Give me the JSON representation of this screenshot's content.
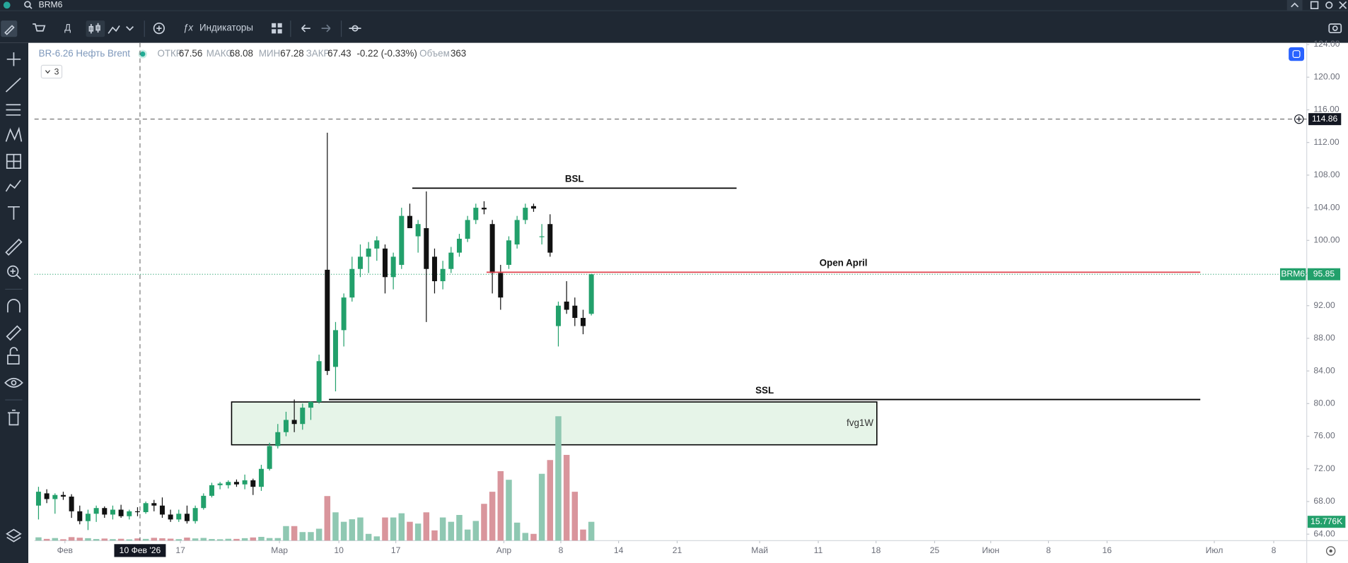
{
  "top_bar": {
    "symbol": "BRM6"
  },
  "toolbar": {
    "interval": "Д",
    "indicators": "Индикаторы"
  },
  "legend": {
    "name": "BR-6.26 Нефть Brent",
    "items": [
      {
        "label": "ОТКР",
        "value": 67.56
      },
      {
        "label": "МАКС",
        "value": 68.08
      },
      {
        "label": "МИН",
        "value": 67.28
      },
      {
        "label": "ЗАКР",
        "value": 67.43
      }
    ],
    "change": "-0.22 (-0.33%)",
    "volume_label": "Объем",
    "volume": 363,
    "collapsed_count": "3"
  },
  "chart_data": {
    "type": "candlestick",
    "open": [
      67.5,
      69.0,
      68.3,
      68.8,
      68.6,
      66.8,
      65.6,
      66.5,
      67.2,
      66.4,
      67.0,
      66.2,
      66.8,
      66.7,
      67.8,
      67.5,
      66.4,
      65.8,
      66.5,
      65.6,
      67.2,
      68.7,
      70.0,
      70.0,
      70.4,
      70.1,
      70.6,
      69.8,
      72.0,
      74.8,
      76.5,
      78.0,
      77.5,
      79.5,
      80.2,
      96.4,
      84.5,
      89.0,
      93.0,
      96.5,
      98.0,
      99.0,
      99.0,
      95.5,
      97.0,
      103.0,
      100.5,
      101.5,
      98.0,
      95.0,
      96.5,
      98.5,
      100.2,
      102.5,
      104.0,
      102.0,
      96.0,
      97.0,
      99.5,
      102.5,
      104.2,
      100.5,
      102.0,
      89.5,
      92.5,
      92.0,
      90.5,
      91.0
    ],
    "high": [
      69.8,
      69.5,
      69.0,
      69.2,
      68.9,
      67.5,
      67.0,
      67.5,
      67.4,
      67.5,
      67.6,
      67.0,
      67.3,
      68.0,
      68.2,
      68.5,
      67.0,
      67.0,
      67.5,
      67.5,
      69.0,
      70.3,
      70.4,
      70.6,
      70.7,
      71.3,
      70.8,
      72.5,
      75.2,
      77.5,
      79.0,
      80.5,
      80.0,
      80.3,
      86.0,
      113.2,
      90.0,
      93.5,
      98.0,
      99.5,
      99.8,
      100.5,
      99.5,
      98.5,
      104.0,
      104.5,
      102.5,
      106.0,
      99.0,
      97.5,
      99.2,
      100.8,
      103.0,
      104.5,
      104.8,
      102.5,
      97.0,
      100.5,
      103.0,
      104.5,
      104.5,
      102.0,
      103.2,
      92.5,
      95.0,
      93.0,
      91.5,
      95.9
    ],
    "low": [
      65.8,
      67.8,
      66.5,
      68.2,
      66.0,
      65.2,
      64.5,
      65.5,
      66.0,
      65.8,
      66.0,
      65.8,
      66.2,
      66.5,
      66.8,
      66.0,
      65.5,
      65.5,
      65.3,
      65.3,
      67.0,
      68.5,
      69.5,
      69.6,
      69.8,
      69.5,
      68.8,
      69.3,
      71.8,
      74.5,
      76.0,
      76.5,
      76.8,
      78.0,
      80.0,
      83.5,
      81.5,
      87.0,
      92.5,
      95.5,
      96.0,
      97.5,
      93.5,
      94.0,
      96.5,
      101.5,
      98.5,
      90.0,
      93.5,
      94.0,
      96.0,
      98.0,
      99.8,
      102.0,
      103.2,
      93.5,
      91.5,
      96.5,
      99.0,
      102.0,
      103.5,
      99.5,
      98.0,
      87.0,
      91.0,
      89.5,
      88.5,
      90.8
    ],
    "close": [
      69.2,
      68.3,
      68.8,
      68.6,
      66.8,
      65.6,
      66.5,
      67.2,
      66.4,
      67.0,
      66.2,
      66.8,
      66.7,
      67.8,
      67.5,
      66.4,
      65.8,
      66.5,
      65.6,
      67.2,
      68.7,
      70.0,
      70.2,
      70.4,
      70.1,
      70.6,
      69.8,
      72.0,
      74.8,
      76.5,
      78.0,
      77.5,
      79.5,
      80.2,
      85.2,
      84.0,
      89.0,
      93.0,
      96.5,
      98.0,
      99.0,
      100.0,
      95.5,
      98.0,
      103.0,
      101.5,
      102.0,
      96.5,
      95.0,
      96.5,
      98.5,
      100.2,
      102.5,
      104.0,
      103.8,
      96.0,
      93.0,
      100.0,
      102.5,
      104.0,
      103.9,
      100.5,
      98.5,
      92.0,
      91.5,
      90.5,
      89.5,
      95.85
    ],
    "volume": [
      2800,
      1500,
      2200,
      1200,
      3000,
      2500,
      2100,
      1400,
      1800,
      1300,
      1600,
      1100,
      1900,
      1500,
      2400,
      2000,
      1700,
      1300,
      2600,
      1900,
      2300,
      1400,
      1200,
      1600,
      1500,
      2100,
      2700,
      3200,
      2200,
      2200,
      12200,
      12200,
      7200,
      7200,
      10000,
      37300,
      23700,
      15800,
      17900,
      19400,
      5700,
      3600,
      19400,
      19400,
      22900,
      15800,
      14300,
      23700,
      8600,
      19400,
      15800,
      21500,
      9300,
      16500,
      30800,
      40900,
      58100,
      50900,
      15100,
      6500,
      5700,
      55900,
      67400,
      104000,
      71700,
      40900,
      9300,
      15776
    ],
    "volume_value_label": "15.776K",
    "up_color": "#22a06b",
    "down_color": "#111111",
    "volume_up_color": "#8fc8b2",
    "volume_down_color": "#d9959c",
    "xlim": [
      -0.5,
      153.7
    ],
    "ylim": [
      63.2,
      124.2
    ],
    "yticks": [
      {
        "value": 64,
        "label": "64.00"
      },
      {
        "value": 68,
        "label": "68.00"
      },
      {
        "value": 72,
        "label": "72.00"
      },
      {
        "value": 76,
        "label": "76.00"
      },
      {
        "value": 80,
        "label": "80.00"
      },
      {
        "value": 84,
        "label": "84.00"
      },
      {
        "value": 88,
        "label": "88.00"
      },
      {
        "value": 92,
        "label": "92.00"
      },
      {
        "value": 96,
        "label": "96.00"
      },
      {
        "value": 100,
        "label": "100.00"
      },
      {
        "value": 104,
        "label": "104.00"
      },
      {
        "value": 108,
        "label": "108.00"
      },
      {
        "value": 112,
        "label": "112.00"
      },
      {
        "value": 116,
        "label": "116.00"
      },
      {
        "value": 120,
        "label": "120.00"
      },
      {
        "value": 124,
        "label": "124.00"
      }
    ],
    "xticks": [
      {
        "value": 3.2,
        "label": "Фев"
      },
      {
        "value": 17.2,
        "label": "17"
      },
      {
        "value": 29.2,
        "label": "Мар"
      },
      {
        "value": 36.4,
        "label": "10"
      },
      {
        "value": 43.3,
        "label": "17"
      },
      {
        "value": 56.4,
        "label": "Апр"
      },
      {
        "value": 63.3,
        "label": "8"
      },
      {
        "value": 70.3,
        "label": "14"
      },
      {
        "value": 77.4,
        "label": "21"
      },
      {
        "value": 87.4,
        "label": "Май"
      },
      {
        "value": 94.5,
        "label": "11"
      },
      {
        "value": 101.5,
        "label": "18"
      },
      {
        "value": 108.6,
        "label": "25"
      },
      {
        "value": 115.4,
        "label": "Июн"
      },
      {
        "value": 122.4,
        "label": "8"
      },
      {
        "value": 129.5,
        "label": "16"
      },
      {
        "value": 142.5,
        "label": "Июл"
      },
      {
        "value": 149.7,
        "label": "8"
      }
    ],
    "grid": false,
    "lines": [
      {
        "label": "BSL",
        "price": 106.4,
        "x0": 45.3,
        "x1": 84.6,
        "color": "#000000"
      },
      {
        "label": "Open April",
        "price": 96.1,
        "x0": 54.3,
        "x1": 140.8,
        "color": "#e0434f"
      },
      {
        "label": "SSL",
        "price": 80.5,
        "x0": 35.2,
        "x1": 140.8,
        "color": "#000000"
      }
    ],
    "boxes": [
      {
        "label": "fvg1W",
        "top": 80.2,
        "bottom": 74.95,
        "x0": 23.4,
        "x1": 101.6,
        "fill": "#e6f4e8"
      }
    ],
    "crosshair": {
      "price": 114.86,
      "x": 12.3,
      "date": "10 Фев '26"
    }
  }
}
